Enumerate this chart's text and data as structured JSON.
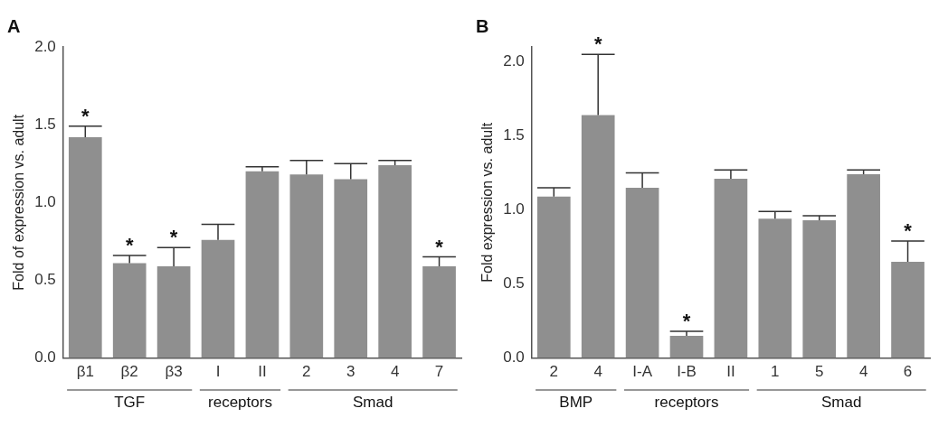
{
  "chart_data": [
    {
      "type": "bar",
      "title": "A",
      "ylabel": "Fold of expression vs. adult",
      "categories": [
        "β1",
        "β2",
        "β3",
        "I",
        "II",
        "2",
        "3",
        "4",
        "7"
      ],
      "values": [
        1.42,
        0.61,
        0.59,
        0.76,
        1.2,
        1.18,
        1.15,
        1.24,
        0.59
      ],
      "errors": [
        [
          1.42,
          1.49
        ],
        [
          0.61,
          0.66
        ],
        [
          0.59,
          0.71
        ],
        [
          0.76,
          0.86
        ],
        [
          1.2,
          1.23
        ],
        [
          1.18,
          1.27
        ],
        [
          1.15,
          1.25
        ],
        [
          1.24,
          1.27
        ],
        [
          0.59,
          0.65
        ]
      ],
      "color": "#8f8f8f",
      "ylim": [
        0,
        2.0
      ],
      "yticks": [
        {
          "value": 0,
          "label": "0.0"
        },
        {
          "value": 0.5,
          "label": "0.5"
        },
        {
          "value": 1,
          "label": "1.0"
        },
        {
          "value": 1.5,
          "label": "1.5"
        },
        {
          "value": 2,
          "label": "2.0"
        }
      ],
      "grid": false,
      "legend": false,
      "annotations": [
        "TGF",
        "receptors",
        "Smad",
        {
          "text": "*",
          "x": "β1",
          "y": 1.49
        },
        {
          "text": "*",
          "x": "β2",
          "y": 0.66
        },
        {
          "text": "*",
          "x": "β3",
          "y": 0.71
        },
        {
          "text": "*",
          "x": "7",
          "y": 0.65
        }
      ]
    },
    {
      "type": "bar",
      "title": "B",
      "ylabel": "Fold expression vs. adult",
      "categories": [
        "2",
        "4",
        "I-A",
        "I-B",
        "II",
        "1",
        "5",
        "4",
        "6"
      ],
      "values": [
        1.09,
        1.64,
        1.15,
        0.15,
        1.21,
        0.94,
        0.93,
        1.24,
        0.65
      ],
      "errors": [
        [
          1.09,
          1.15
        ],
        [
          1.64,
          2.05
        ],
        [
          1.15,
          1.25
        ],
        [
          0.15,
          0.18
        ],
        [
          1.21,
          1.27
        ],
        [
          0.94,
          0.99
        ],
        [
          0.93,
          0.96
        ],
        [
          1.24,
          1.27
        ],
        [
          0.65,
          0.79
        ]
      ],
      "color": "#8f8f8f",
      "ylim": [
        0,
        2.1
      ],
      "yticks": [
        {
          "value": 0,
          "label": "0.0"
        },
        {
          "value": 0.5,
          "label": "0.5"
        },
        {
          "value": 1,
          "label": "1.0"
        },
        {
          "value": 1.5,
          "label": "1.5"
        },
        {
          "value": 2,
          "label": "2.0"
        }
      ],
      "grid": false,
      "legend": false,
      "annotations": [
        "BMP",
        "receptors",
        "Smad",
        {
          "text": "*",
          "x": "4",
          "y": 2.05
        },
        {
          "text": "*",
          "x": "I-B",
          "y": 0.18
        },
        {
          "text": "*",
          "x": "6",
          "y": 0.79
        }
      ]
    }
  ]
}
